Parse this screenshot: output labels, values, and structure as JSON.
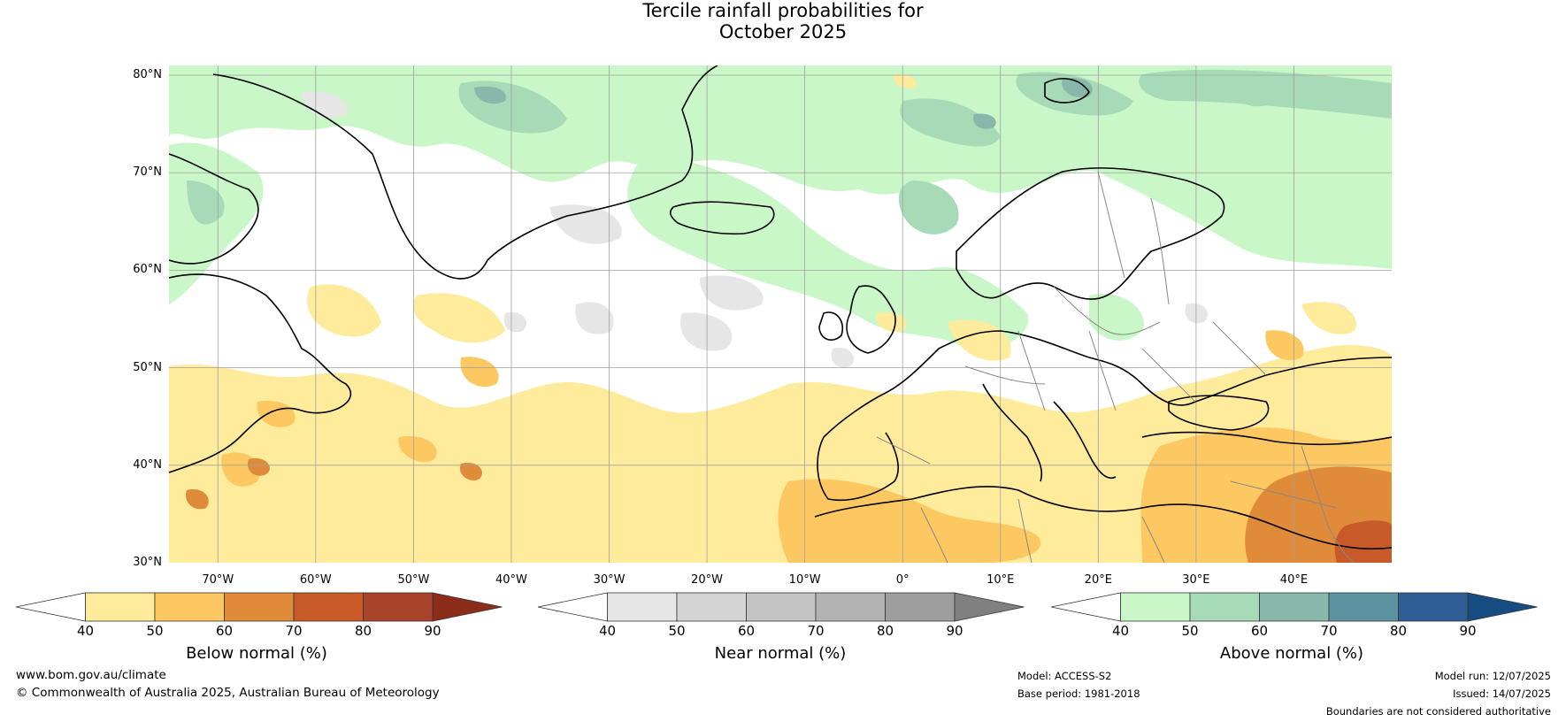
{
  "title": {
    "line1": "Tercile rainfall probabilities for",
    "line2": "October 2025"
  },
  "map": {
    "lat_labels": [
      "80°N",
      "70°N",
      "60°N",
      "50°N",
      "40°N",
      "30°N"
    ],
    "lon_labels": [
      "70°W",
      "60°W",
      "50°W",
      "40°W",
      "30°W",
      "20°W",
      "10°W",
      "0°",
      "10°E",
      "20°E",
      "30°E",
      "40°E"
    ],
    "extent": {
      "west": -75,
      "east": 50,
      "south": 30,
      "north": 81
    },
    "colors": {
      "below": [
        "#ffeb9c",
        "#fdc861",
        "#e08b3a",
        "#c85a2a",
        "#a8442a",
        "#8c2d1c"
      ],
      "near": [
        "#e6e6e6",
        "#d4d4d4",
        "#c4c4c4",
        "#b3b3b3",
        "#9e9e9e",
        "#808080"
      ],
      "above": [
        "#c9f7c8",
        "#a7dbb7",
        "#87b8ab",
        "#5c92a0",
        "#2f5e94",
        "#174c83"
      ]
    }
  },
  "colorbars": [
    {
      "id": "below",
      "label": "Below normal (%)",
      "ticks": [
        "40",
        "50",
        "60",
        "70",
        "80",
        "90"
      ]
    },
    {
      "id": "near",
      "label": "Near normal (%)",
      "ticks": [
        "40",
        "50",
        "60",
        "70",
        "80",
        "90"
      ]
    },
    {
      "id": "above",
      "label": "Above normal (%)",
      "ticks": [
        "40",
        "50",
        "60",
        "70",
        "80",
        "90"
      ]
    }
  ],
  "footer": {
    "website": "www.bom.gov.au/climate",
    "copyright": "© Commonwealth of Australia 2025, Australian Bureau of Meteorology",
    "model": "Model: ACCESS-S2",
    "base_period": "Base period: 1981-2018",
    "model_run": "Model run: 12/07/2025",
    "issued": "Issued: 14/07/2025",
    "disclaimer": "Boundaries are not considered authoritative"
  }
}
